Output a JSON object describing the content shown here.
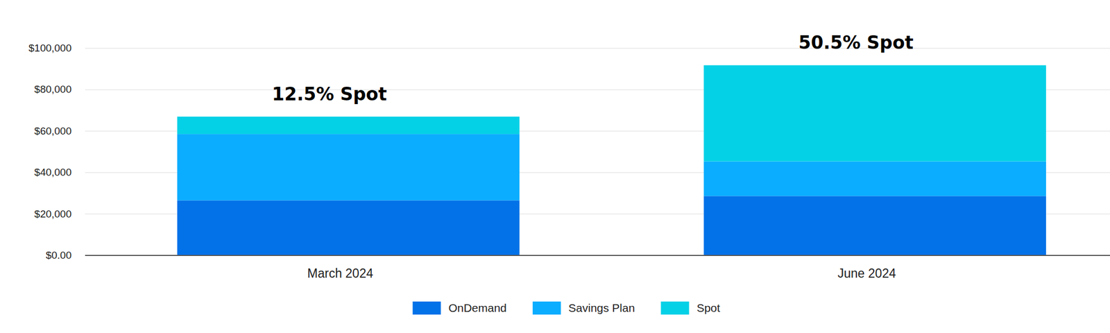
{
  "chart_data": {
    "type": "bar",
    "stacked": true,
    "categories": [
      "March 2024",
      "June 2024"
    ],
    "series": [
      {
        "name": "OnDemand",
        "color": "#0372e8",
        "values": [
          26600,
          28700
        ]
      },
      {
        "name": "Savings Plan",
        "color": "#0aadff",
        "values": [
          32000,
          16700
        ]
      },
      {
        "name": "Spot",
        "color": "#05d1e6",
        "values": [
          8400,
          46400
        ]
      }
    ],
    "annotations": [
      "12.5% Spot",
      "50.5% Spot"
    ],
    "ylim": [
      0,
      100000
    ],
    "yticks": [
      {
        "value": 0,
        "label": "$0.00"
      },
      {
        "value": 20000,
        "label": "$20,000"
      },
      {
        "value": 40000,
        "label": "$40,000"
      },
      {
        "value": 60000,
        "label": "$60,000"
      },
      {
        "value": 80000,
        "label": "$80,000"
      },
      {
        "value": 100000,
        "label": "$100,000"
      }
    ],
    "grid": true,
    "legend": "bottom"
  }
}
